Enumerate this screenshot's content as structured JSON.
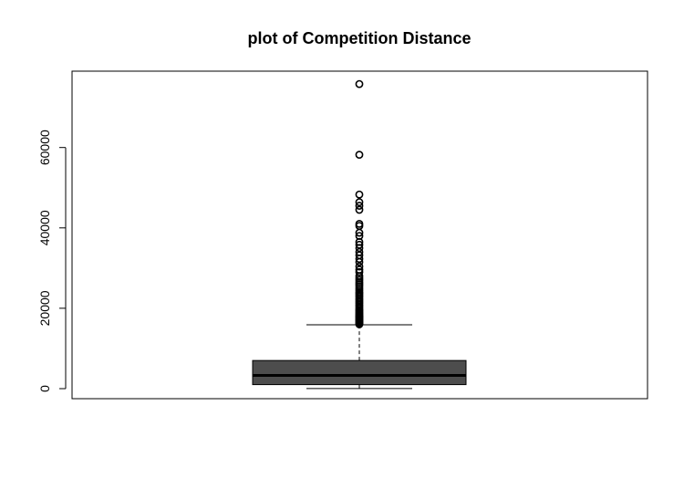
{
  "chart_data": {
    "type": "box",
    "title": "plot of Competition Distance",
    "xlabel": "",
    "ylabel": "",
    "ylim": [
      -2500,
      79000
    ],
    "y_ticks": [
      0,
      20000,
      40000,
      60000
    ],
    "y_tick_labels": [
      "0",
      "20000",
      "40000",
      "60000"
    ],
    "grid": false,
    "legend": "none",
    "colors": {
      "box_fill": "#4d4d4d",
      "median": "#000000",
      "frame": "#000000"
    },
    "box": {
      "lower_whisker": 20,
      "q1": 1000,
      "median": 3300,
      "q3": 7000,
      "upper_whisker": 15900
    },
    "outliers": [
      16000,
      16200,
      16400,
      16600,
      16800,
      17000,
      17200,
      17400,
      17600,
      17800,
      18000,
      18200,
      18400,
      18700,
      19000,
      19300,
      19600,
      20000,
      20400,
      20800,
      21200,
      21600,
      22000,
      22400,
      22800,
      23200,
      23600,
      24000,
      24500,
      25000,
      25500,
      26000,
      26500,
      27000,
      27500,
      28000,
      29000,
      29600,
      30400,
      31500,
      32300,
      33200,
      34000,
      35000,
      35800,
      36500,
      38000,
      38800,
      40500,
      41000,
      44500,
      45500,
      46400,
      48300,
      58200,
      75800
    ]
  }
}
